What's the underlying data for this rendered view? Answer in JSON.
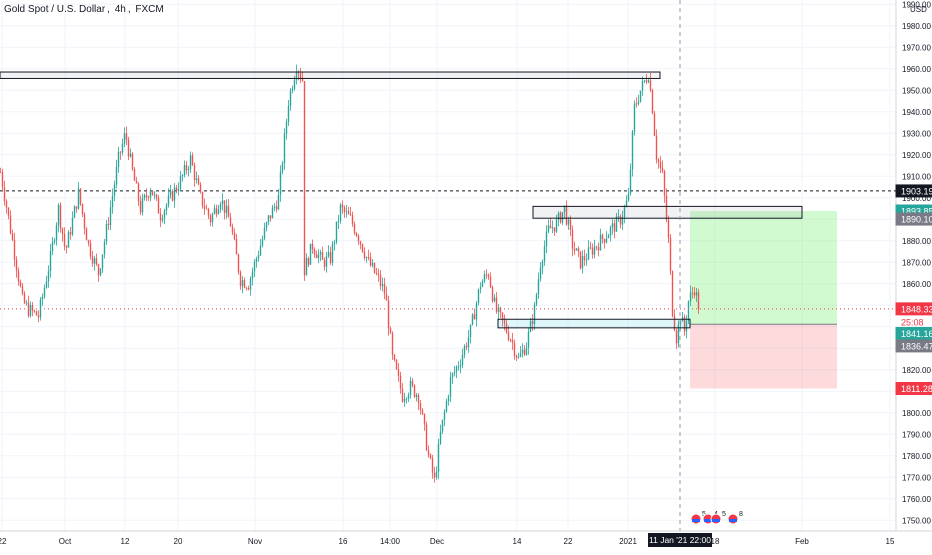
{
  "header": {
    "symbol": "Gold Spot / U.S. Dollar",
    "timeframe": "4h",
    "exchange": "FXCM"
  },
  "chart_data": {
    "type": "candlestick",
    "title": "Gold Spot / U.S. Dollar, 4h, FXCM",
    "currency": "USD",
    "ylim": [
      1745,
      1992
    ],
    "y_ticks": [
      1750,
      1760,
      1770,
      1780,
      1790,
      1800,
      1810,
      1820,
      1830,
      1840,
      1850,
      1860,
      1870,
      1880,
      1890,
      1900,
      1910,
      1920,
      1930,
      1940,
      1950,
      1960,
      1970,
      1980,
      1990
    ],
    "x_ticks": [
      {
        "label": "22",
        "t": 2
      },
      {
        "label": "Oct",
        "t": 65
      },
      {
        "label": "12",
        "t": 125
      },
      {
        "label": "20",
        "t": 178
      },
      {
        "label": "Nov",
        "t": 255
      },
      {
        "label": "16",
        "t": 343
      },
      {
        "label": "14:00",
        "t": 390
      },
      {
        "label": "Dec",
        "t": 437
      },
      {
        "label": "14",
        "t": 517
      },
      {
        "label": "22",
        "t": 568
      },
      {
        "label": "2021",
        "t": 628
      },
      {
        "label": "18",
        "t": 715
      },
      {
        "label": "Feb",
        "t": 802
      },
      {
        "label": "15",
        "t": 890
      }
    ],
    "keypoints": [
      [
        0,
        1912
      ],
      [
        12,
        1880
      ],
      [
        22,
        1852
      ],
      [
        28,
        1848
      ],
      [
        38,
        1845
      ],
      [
        50,
        1872
      ],
      [
        58,
        1895
      ],
      [
        65,
        1875
      ],
      [
        78,
        1902
      ],
      [
        88,
        1878
      ],
      [
        98,
        1865
      ],
      [
        108,
        1890
      ],
      [
        118,
        1918
      ],
      [
        125,
        1930
      ],
      [
        132,
        1912
      ],
      [
        140,
        1895
      ],
      [
        150,
        1905
      ],
      [
        160,
        1892
      ],
      [
        170,
        1900
      ],
      [
        180,
        1908
      ],
      [
        190,
        1918
      ],
      [
        200,
        1900
      ],
      [
        210,
        1890
      ],
      [
        220,
        1900
      ],
      [
        230,
        1888
      ],
      [
        240,
        1862
      ],
      [
        248,
        1860
      ],
      [
        258,
        1875
      ],
      [
        268,
        1890
      ],
      [
        278,
        1900
      ],
      [
        288,
        1945
      ],
      [
        296,
        1962
      ],
      [
        302,
        1955
      ],
      [
        303,
        1865
      ],
      [
        312,
        1878
      ],
      [
        322,
        1870
      ],
      [
        330,
        1872
      ],
      [
        340,
        1895
      ],
      [
        350,
        1890
      ],
      [
        358,
        1882
      ],
      [
        368,
        1870
      ],
      [
        378,
        1862
      ],
      [
        385,
        1855
      ],
      [
        392,
        1825
      ],
      [
        402,
        1808
      ],
      [
        410,
        1812
      ],
      [
        418,
        1808
      ],
      [
        428,
        1780
      ],
      [
        434,
        1768
      ],
      [
        440,
        1790
      ],
      [
        450,
        1815
      ],
      [
        460,
        1825
      ],
      [
        470,
        1838
      ],
      [
        480,
        1860
      ],
      [
        488,
        1865
      ],
      [
        495,
        1848
      ],
      [
        502,
        1842
      ],
      [
        510,
        1835
      ],
      [
        518,
        1825
      ],
      [
        526,
        1832
      ],
      [
        534,
        1848
      ],
      [
        540,
        1870
      ],
      [
        548,
        1885
      ],
      [
        556,
        1888
      ],
      [
        564,
        1895
      ],
      [
        572,
        1878
      ],
      [
        580,
        1870
      ],
      [
        590,
        1875
      ],
      [
        600,
        1880
      ],
      [
        610,
        1885
      ],
      [
        620,
        1890
      ],
      [
        628,
        1900
      ],
      [
        634,
        1942
      ],
      [
        640,
        1950
      ],
      [
        648,
        1958
      ],
      [
        652,
        1942
      ],
      [
        656,
        1920
      ],
      [
        662,
        1910
      ],
      [
        668,
        1880
      ],
      [
        672,
        1848
      ],
      [
        676,
        1835
      ],
      [
        680,
        1845
      ],
      [
        684,
        1838
      ],
      [
        688,
        1852
      ],
      [
        694,
        1858
      ],
      [
        698,
        1850
      ]
    ],
    "price_lines": [
      {
        "label": "1903.19",
        "price": 1903.19,
        "style": "dashed",
        "color": "#131722"
      },
      {
        "label": "1848.33",
        "price": 1848.33,
        "style": "dotted",
        "color": "#f23645"
      }
    ],
    "price_labels": [
      {
        "label": "1903.19",
        "price": 1903.19,
        "bg": "#131722",
        "fg": "#ffffff"
      },
      {
        "label": "1893.85",
        "price": 1893.85,
        "bg": "#26a69a",
        "fg": "#ffffff"
      },
      {
        "label": "1890.10",
        "price": 1890.1,
        "bg": "#787b86",
        "fg": "#ffffff"
      },
      {
        "label": "1848.33",
        "price": 1848.33,
        "bg": "#f23645",
        "fg": "#ffffff"
      },
      {
        "label": "25:08",
        "price": 1842.2,
        "bg": "#ffffff",
        "fg": "#f23645"
      },
      {
        "label": "1841.16",
        "price": 1836.9,
        "bg": "#26a69a",
        "fg": "#ffffff"
      },
      {
        "label": "1836.47",
        "price": 1831.1,
        "bg": "#787b86",
        "fg": "#ffffff"
      },
      {
        "label": "1811.28",
        "price": 1811.28,
        "bg": "#f23645",
        "fg": "#ffffff"
      }
    ],
    "zones": [
      {
        "kind": "resistance",
        "t1": 0,
        "t2": 660,
        "p_top": 1958.5,
        "p_bottom": 1955.5
      },
      {
        "kind": "supply",
        "t1": 533,
        "t2": 802,
        "p_top": 1896,
        "p_bottom": 1890.5
      },
      {
        "kind": "demand",
        "t1": 498,
        "t2": 690,
        "p_top": 1843.5,
        "p_bottom": 1839.5
      }
    ],
    "position": {
      "t1": 690,
      "t2": 837,
      "entry": 1841.16,
      "target": 1893.85,
      "stop": 1811.28
    },
    "crosshair": {
      "t": 680,
      "date_label": "11 Jan '21",
      "time_label": "22:00"
    },
    "event_markers": [
      {
        "t": 696,
        "count": "5"
      },
      {
        "t": 708,
        "count": "4"
      },
      {
        "t": 716,
        "count": "5"
      },
      {
        "t": 733,
        "count": "8"
      }
    ],
    "colors": {
      "up": "#26a69a",
      "down": "#ef5350",
      "grid": "#f0f3fa",
      "axis_text": "#131722",
      "target_zone": "rgba(76,234,70,0.25)",
      "stop_zone": "rgba(242,54,69,0.18)"
    }
  }
}
